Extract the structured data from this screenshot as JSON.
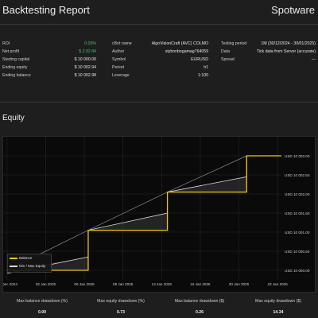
{
  "header": {
    "title": "Backtesting Report",
    "brand": "Spotware"
  },
  "stats": {
    "col1": [
      {
        "label": "ROI",
        "value": "0.03%",
        "accent": "#44c26a"
      },
      {
        "label": "Net profit",
        "value": "$ 3.92 84",
        "accent": "#44c26a"
      },
      {
        "label": "Starting capital",
        "value": "$ 10 000.00"
      },
      {
        "label": "Ending equity",
        "value": "$ 10 002.94"
      },
      {
        "label": "Ending balance",
        "value": "$ 10 002.98"
      }
    ],
    "col2": [
      {
        "label": "cBot name",
        "value": "AlgoVisionCraft (AVC) COLMO"
      },
      {
        "label": "Author",
        "value": "stybonbogamag764059"
      },
      {
        "label": "Symbol",
        "value": "EURUSD"
      },
      {
        "label": "Period",
        "value": "h1"
      },
      {
        "label": "Leverage",
        "value": "1:100"
      }
    ],
    "col3": [
      {
        "label": "Testing period",
        "value": "1M (30/12/2024 - 30/01/2025)"
      },
      {
        "label": "Data",
        "value": "Tick data from Server (accurate)"
      },
      {
        "label": "Spread",
        "value": "—"
      }
    ]
  },
  "equity": {
    "title": "Equity"
  },
  "chart_data": {
    "type": "line",
    "x_ticks": [
      "30 Dec 2024",
      "02 Jan 2025",
      "06 Jan 2025",
      "09 Jan 2025",
      "13 Jan 2025",
      "16 Jan 2025",
      "20 Jan 2025",
      "23 Jan 2025"
    ],
    "y_ticks": [
      "USD 10 003.00",
      "USD 10 002.50",
      "USD 10 002.00",
      "USD 10 001.50",
      "USD 10 001.00",
      "USD 10 000.50",
      "USD 10 000.00"
    ],
    "ylim": [
      9999.75,
      10003.5
    ],
    "series": [
      {
        "name": "Balance",
        "color": "#f0c419",
        "points": [
          [
            0,
            10000.0
          ],
          [
            2.1,
            10000.0
          ],
          [
            2.1,
            10001.05
          ],
          [
            4.15,
            10001.05
          ],
          [
            4.15,
            10002.05
          ],
          [
            6.2,
            10002.05
          ],
          [
            6.2,
            10003.0
          ],
          [
            7.1,
            10003.0
          ]
        ]
      },
      {
        "name": "Min / Max Equity",
        "color": "#d8d8d8",
        "points": [
          [
            0,
            9999.92
          ],
          [
            2.1,
            10000.35
          ],
          [
            2.1,
            10001.05
          ],
          [
            4.15,
            10001.5
          ],
          [
            4.15,
            10002.05
          ],
          [
            6.2,
            10002.45
          ],
          [
            6.2,
            10003.0
          ]
        ]
      }
    ],
    "legend": "top-left"
  },
  "footer": [
    {
      "label": "Max balance drawdown (%)",
      "value": "0.00"
    },
    {
      "label": "Max equity drawdown (%)",
      "value": "0.73"
    },
    {
      "label": "Max balance drawdown ($)",
      "value": "0.26"
    },
    {
      "label": "Max equity drawdown ($)",
      "value": "14.34"
    }
  ]
}
